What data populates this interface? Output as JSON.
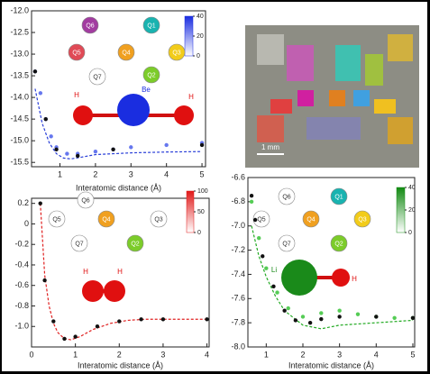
{
  "chart_data": [
    {
      "type": "line",
      "x_label": "Interatomic distance (Å)",
      "xlim": [
        0.2,
        5.1
      ],
      "ylim": [
        -15.6,
        -12
      ],
      "xticks": [
        1,
        2,
        3,
        4,
        5
      ],
      "yticks": [
        {
          "value": -12,
          "label": "-12.0"
        },
        -12.5,
        {
          "value": -13,
          "label": "-13.0"
        },
        -13.5,
        {
          "value": -14,
          "label": "-14.0"
        },
        -14.5,
        {
          "value": -15,
          "label": "-15.0"
        },
        -15.5
      ],
      "series": [
        {
          "color": "#2a3fd8",
          "mode": "dashed",
          "x": [
            0.3,
            0.5,
            0.7,
            0.9,
            1.1,
            1.3,
            1.6,
            2,
            2.5,
            3,
            4,
            5
          ],
          "values": [
            -13.8,
            -14.6,
            -15.05,
            -15.3,
            -15.4,
            -15.42,
            -15.38,
            -15.32,
            -15.3,
            -15.28,
            -15.26,
            -15.25
          ]
        },
        {
          "color": "#6677ee",
          "mode": "markers",
          "x": [
            0.3,
            0.45,
            0.6,
            0.75,
            0.9,
            1.2,
            1.5,
            2,
            2.5,
            3,
            4,
            5
          ],
          "values": [
            -13.4,
            -13.9,
            -14.5,
            -14.9,
            -15.15,
            -15.3,
            -15.3,
            -15.25,
            -15.2,
            -15.15,
            -15.1,
            -15.05
          ]
        },
        {
          "color": "#111111",
          "mode": "markers",
          "x": [
            0.3,
            0.6,
            0.9,
            1.5,
            2.5,
            5
          ],
          "values": [
            -13.4,
            -14.5,
            -15.2,
            -15.35,
            -15.2,
            -15.1
          ]
        }
      ],
      "colorbar": {
        "color": "#1a2de0",
        "lim": [
          0,
          40
        ],
        "ticks": [
          0,
          20,
          40
        ]
      },
      "qubits": [
        {
          "label": "Q6",
          "color": "#a23ca0"
        },
        {
          "label": "Q1",
          "color": "#19b3b0"
        },
        {
          "label": "Q5",
          "color": "#e04a56"
        },
        {
          "label": "Q4",
          "color": "#f0a020"
        },
        {
          "label": "Q3",
          "color": "#f2cc1a"
        },
        {
          "label": "Q7",
          "color": "#ffffff"
        },
        {
          "label": "Q2",
          "color": "#7ccc2a"
        }
      ],
      "atoms": [
        {
          "label": "H",
          "color": "#e01010"
        },
        {
          "label": "Be",
          "color": "#1a2de0"
        },
        {
          "label": "H",
          "color": "#e01010"
        }
      ]
    },
    {
      "type": "line",
      "x_label": "Interatomic distance (Å)",
      "xlim": [
        0,
        4.05
      ],
      "ylim": [
        -1.2,
        0.25
      ],
      "xticks": [
        0,
        1,
        2,
        3,
        4
      ],
      "yticks": [
        0.2,
        0,
        -0.2,
        -0.4,
        -0.6,
        -0.8,
        {
          "value": -1,
          "label": "-1.0"
        }
      ],
      "series": [
        {
          "color": "#e02020",
          "mode": "dashed",
          "x": [
            0.2,
            0.3,
            0.4,
            0.5,
            0.6,
            0.75,
            0.9,
            1.1,
            1.4,
            1.8,
            2.2,
            2.6,
            3,
            3.5,
            4
          ],
          "values": [
            0.2,
            -0.5,
            -0.8,
            -0.97,
            -1.06,
            -1.12,
            -1.13,
            -1.1,
            -1.03,
            -0.97,
            -0.94,
            -0.93,
            -0.93,
            -0.93,
            -0.93
          ]
        },
        {
          "color": "#111111",
          "mode": "markers",
          "x": [
            0.2,
            0.3,
            0.5,
            0.75,
            1,
            1.5,
            2,
            2.5,
            3,
            4
          ],
          "values": [
            0.2,
            -0.55,
            -0.95,
            -1.12,
            -1.1,
            -1.0,
            -0.95,
            -0.93,
            -0.93,
            -0.93
          ]
        }
      ],
      "colorbar": {
        "color": "#e01818",
        "lim": [
          0,
          100
        ],
        "ticks": [
          0,
          50,
          100
        ]
      },
      "qubits": [
        {
          "label": "Q6",
          "color": "#ffffff"
        },
        {
          "label": "Q5",
          "color": "#ffffff"
        },
        {
          "label": "Q4",
          "color": "#f0a020"
        },
        {
          "label": "Q3",
          "color": "#ffffff"
        },
        {
          "label": "Q7",
          "color": "#ffffff"
        },
        {
          "label": "Q2",
          "color": "#7ccc2a"
        }
      ],
      "atoms": [
        {
          "label": "H",
          "color": "#e01010"
        },
        {
          "label": "H",
          "color": "#e01010"
        }
      ]
    },
    {
      "type": "line",
      "x_label": "Interatomic distance (Å)",
      "xlim": [
        0.5,
        5.05
      ],
      "ylim": [
        -8,
        -6.6
      ],
      "xticks": [
        1,
        2,
        3,
        4,
        5
      ],
      "yticks": [
        -6.6,
        -6.8,
        {
          "value": -7,
          "label": "-7.0"
        },
        -7.2,
        -7.4,
        -7.6,
        -7.8,
        {
          "value": -8,
          "label": "-8.0"
        }
      ],
      "series": [
        {
          "color": "#22aa22",
          "mode": "dashed",
          "x": [
            0.6,
            0.8,
            1,
            1.25,
            1.5,
            2,
            2.5,
            3,
            4,
            5
          ],
          "values": [
            -7.0,
            -7.25,
            -7.42,
            -7.58,
            -7.7,
            -7.82,
            -7.85,
            -7.82,
            -7.8,
            -7.78
          ]
        },
        {
          "color": "#55cc55",
          "mode": "markers",
          "x": [
            0.6,
            0.8,
            1,
            1.3,
            1.6,
            2,
            2.5,
            3,
            3.5,
            4,
            4.5,
            5
          ],
          "values": [
            -6.8,
            -7.1,
            -7.35,
            -7.55,
            -7.68,
            -7.75,
            -7.72,
            -7.7,
            -7.73,
            -7.75,
            -7.76,
            -7.76
          ]
        },
        {
          "color": "#111111",
          "mode": "markers",
          "x": [
            0.6,
            0.7,
            0.9,
            1.2,
            1.5,
            1.8,
            2.2,
            2.5,
            3,
            4,
            5
          ],
          "values": [
            -6.75,
            -6.95,
            -7.25,
            -7.5,
            -7.7,
            -7.78,
            -7.8,
            -7.77,
            -7.75,
            -7.75,
            -7.76
          ]
        }
      ],
      "colorbar": {
        "color": "#128a12",
        "lim": [
          0,
          40
        ],
        "ticks": [
          0,
          20,
          40
        ]
      },
      "qubits": [
        {
          "label": "Q6",
          "color": "#ffffff"
        },
        {
          "label": "Q1",
          "color": "#19b3b0"
        },
        {
          "label": "Q5",
          "color": "#ffffff"
        },
        {
          "label": "Q4",
          "color": "#f0a020"
        },
        {
          "label": "Q3",
          "color": "#f2cc1a"
        },
        {
          "label": "Q7",
          "color": "#ffffff"
        },
        {
          "label": "Q2",
          "color": "#7ccc2a"
        }
      ],
      "atoms": [
        {
          "label": "Li",
          "color": "#1a8a1a"
        },
        {
          "label": "H",
          "color": "#e01010"
        }
      ]
    }
  ],
  "image": {
    "scale_label": "1 mm"
  }
}
